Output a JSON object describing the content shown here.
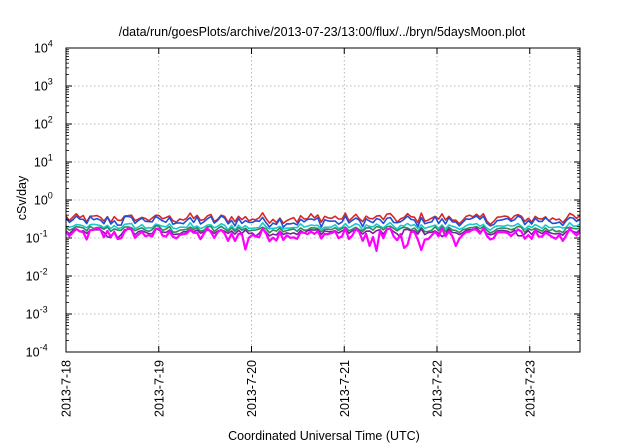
{
  "chart_data": {
    "type": "line",
    "title": "/data/run/goesPlots/archive/2013-07-23/13:00/flux/../bryn/5daysMoon.plot",
    "xlabel": "Coordinated Universal Time (UTC)",
    "ylabel": "cSv/day",
    "y_scale": "log",
    "ylim": [
      0.0001,
      10000
    ],
    "xlim": [
      "2013-7-18 00:00",
      "2013-7-23 13:00"
    ],
    "y_ticks": [
      {
        "base": "10",
        "exp": "-4",
        "value": 0.0001
      },
      {
        "base": "10",
        "exp": "-3",
        "value": 0.001
      },
      {
        "base": "10",
        "exp": "-2",
        "value": 0.01
      },
      {
        "base": "10",
        "exp": "-1",
        "value": 0.1
      },
      {
        "base": "10",
        "exp": "0",
        "value": 1
      },
      {
        "base": "10",
        "exp": "1",
        "value": 10
      },
      {
        "base": "10",
        "exp": "2",
        "value": 100
      },
      {
        "base": "10",
        "exp": "3",
        "value": 1000
      },
      {
        "base": "10",
        "exp": "4",
        "value": 10000
      }
    ],
    "x_ticks": [
      "2013-7-18",
      "2013-7-19",
      "2013-7-20",
      "2013-7-21",
      "2013-7-22",
      "2013-7-23"
    ],
    "grid": true,
    "legend": "none",
    "series": [
      {
        "color": "#d62728",
        "x_start": "2013-7-18 00:00",
        "x_end": "2013-7-23 13:00",
        "typical_value": 0.33,
        "range": [
          0.22,
          0.62
        ]
      },
      {
        "color": "#1f4fd8",
        "x_start": "2013-7-18 00:00",
        "x_end": "2013-7-23 13:00",
        "typical_value": 0.28,
        "range": [
          0.13,
          0.38
        ]
      },
      {
        "color": "#19c8c8",
        "x_start": "2013-7-18 00:00",
        "x_end": "2013-7-23 13:00",
        "typical_value": 0.2,
        "range": [
          0.14,
          0.28
        ]
      },
      {
        "color": "#2e8b57",
        "x_start": "2013-7-18 00:00",
        "x_end": "2013-7-23 13:00",
        "typical_value": 0.17,
        "range": [
          0.12,
          0.24
        ]
      },
      {
        "color": "#7a1fa2",
        "x_start": "2013-7-18 00:00",
        "x_end": "2013-7-23 13:00",
        "typical_value": 0.145,
        "range": [
          0.1,
          0.2
        ]
      },
      {
        "color": "#ff00ff",
        "x_start": "2013-7-18 00:00",
        "x_end": "2013-7-23 13:00",
        "typical_value": 0.125,
        "range": [
          0.045,
          0.18
        ]
      }
    ]
  }
}
